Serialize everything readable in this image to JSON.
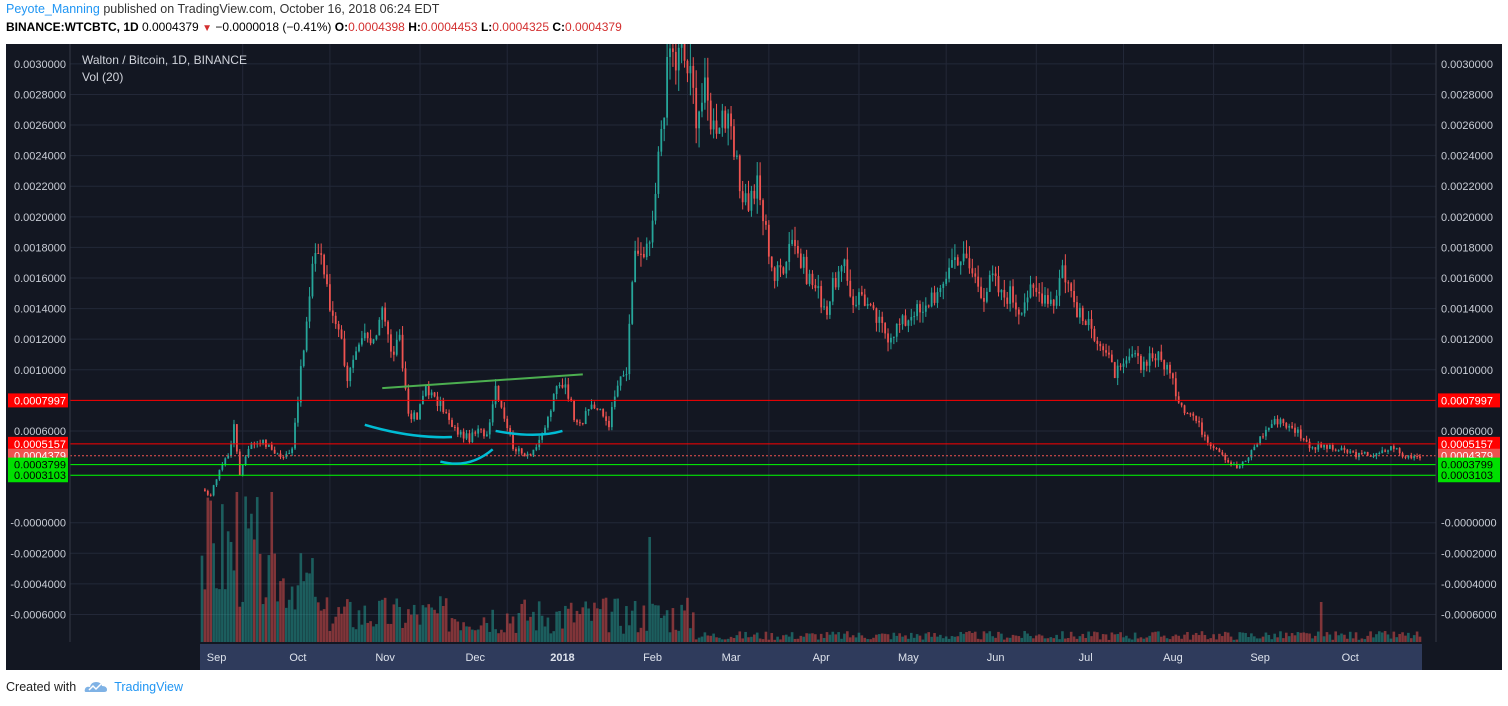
{
  "header": {
    "author": "Peyote_Manning",
    "published_text": "published on TradingView.com, October 16, 2018 06:24 EDT",
    "symbol": "BINANCE:WTCBTC, 1D",
    "last": "0.0004379",
    "change": "−0.0000018 (−0.41%)",
    "o_label": "O:",
    "o_value": "0.0004398",
    "h_label": "H:",
    "h_value": "0.0004453",
    "l_label": "L:",
    "l_value": "0.0004325",
    "c_label": "C:",
    "c_value": "0.0004379"
  },
  "footer": {
    "created_with": "Created with",
    "brand": "TradingView"
  },
  "colors": {
    "background": "#131722",
    "up": "#26a69a",
    "down": "#ef5350",
    "resistance_line": "#ff0000",
    "support_line": "#00ff00",
    "trendline": "#4caf50",
    "curve": "#00bcd4"
  },
  "chart_data": {
    "type": "candlestick",
    "title": "Walton / Bitcoin, 1D, BINANCE",
    "subtitle": "Vol (20)",
    "x_labels": [
      "Sep",
      "Oct",
      "Nov",
      "Dec",
      "2018",
      "Feb",
      "Mar",
      "Apr",
      "May",
      "Jun",
      "Jul",
      "Aug",
      "Sep",
      "Oct"
    ],
    "y_ticks": [
      "0.0030000",
      "0.0028000",
      "0.0026000",
      "0.0024000",
      "0.0022000",
      "0.0020000",
      "0.0018000",
      "0.0016000",
      "0.0014000",
      "0.0012000",
      "0.0010000",
      "0.0006000",
      "-0.0000000",
      "-0.0002000",
      "-0.0004000",
      "-0.0006000"
    ],
    "ylim": [
      -0.00078,
      0.00313
    ],
    "price_levels": [
      {
        "value": 0.0007997,
        "label": "0.0007997",
        "color": "#ff0000"
      },
      {
        "value": 0.0005157,
        "label": "0.0005157",
        "color": "#ff0000"
      },
      {
        "value": 0.0004379,
        "label": "0.0004379",
        "color": "#ef5350"
      },
      {
        "value": 0.0003799,
        "label": "0.0003799",
        "color": "#00ff00"
      },
      {
        "value": 0.0003103,
        "label": "0.0003103",
        "color": "#00ff00"
      }
    ],
    "close_path": [
      [
        0,
        0.00021
      ],
      [
        3,
        0.00018
      ],
      [
        6,
        0.00035
      ],
      [
        9,
        0.00045
      ],
      [
        11,
        0.00062
      ],
      [
        13,
        0.00032
      ],
      [
        16,
        0.0005
      ],
      [
        20,
        0.00054
      ],
      [
        24,
        0.00048
      ],
      [
        28,
        0.00042
      ],
      [
        31,
        0.0005
      ],
      [
        33,
        0.00082
      ],
      [
        36,
        0.0013
      ],
      [
        39,
        0.0018
      ],
      [
        41,
        0.00176
      ],
      [
        44,
        0.0014
      ],
      [
        47,
        0.0013
      ],
      [
        50,
        0.00095
      ],
      [
        53,
        0.00108
      ],
      [
        56,
        0.00122
      ],
      [
        59,
        0.00115
      ],
      [
        62,
        0.00145
      ],
      [
        65,
        0.0011
      ],
      [
        68,
        0.00118
      ],
      [
        71,
        0.00072
      ],
      [
        74,
        0.00068
      ],
      [
        77,
        0.0009
      ],
      [
        80,
        0.0008
      ],
      [
        83,
        0.00075
      ],
      [
        86,
        0.00062
      ],
      [
        89,
        0.00058
      ],
      [
        92,
        0.00055
      ],
      [
        95,
        0.0006
      ],
      [
        98,
        0.00058
      ],
      [
        101,
        0.0009
      ],
      [
        104,
        0.0007
      ],
      [
        107,
        0.0005
      ],
      [
        110,
        0.00045
      ],
      [
        113,
        0.00046
      ],
      [
        116,
        0.00052
      ],
      [
        119,
        0.00068
      ],
      [
        122,
        0.00088
      ],
      [
        125,
        0.00092
      ],
      [
        128,
        0.0007
      ],
      [
        131,
        0.00066
      ],
      [
        134,
        0.00078
      ],
      [
        137,
        0.00072
      ],
      [
        140,
        0.00065
      ],
      [
        143,
        0.0009
      ],
      [
        146,
        0.00098
      ],
      [
        149,
        0.0018
      ],
      [
        152,
        0.0017
      ],
      [
        155,
        0.0019
      ],
      [
        158,
        0.0026
      ],
      [
        161,
        0.0031
      ],
      [
        163,
        0.003
      ],
      [
        165,
        0.0031
      ],
      [
        168,
        0.0029
      ],
      [
        170,
        0.0027
      ],
      [
        173,
        0.0028
      ],
      [
        176,
        0.0026
      ],
      [
        179,
        0.0027
      ],
      [
        182,
        0.0025
      ],
      [
        185,
        0.0022
      ],
      [
        188,
        0.0021
      ],
      [
        191,
        0.0022
      ],
      [
        194,
        0.0019
      ],
      [
        197,
        0.0016
      ],
      [
        200,
        0.0017
      ],
      [
        203,
        0.0019
      ],
      [
        206,
        0.0017
      ],
      [
        209,
        0.0016
      ],
      [
        212,
        0.0015
      ],
      [
        215,
        0.0014
      ],
      [
        218,
        0.0016
      ],
      [
        221,
        0.00165
      ],
      [
        224,
        0.00145
      ],
      [
        227,
        0.0015
      ],
      [
        230,
        0.00138
      ],
      [
        233,
        0.0013
      ],
      [
        236,
        0.00123
      ],
      [
        239,
        0.00128
      ],
      [
        242,
        0.00132
      ],
      [
        245,
        0.0014
      ],
      [
        248,
        0.00135
      ],
      [
        251,
        0.0015
      ],
      [
        254,
        0.00148
      ],
      [
        257,
        0.0017
      ],
      [
        260,
        0.00175
      ],
      [
        263,
        0.0017
      ],
      [
        266,
        0.0016
      ],
      [
        269,
        0.0015
      ],
      [
        272,
        0.0016
      ],
      [
        275,
        0.00148
      ],
      [
        278,
        0.0015
      ],
      [
        281,
        0.0014
      ],
      [
        284,
        0.0015
      ],
      [
        287,
        0.0015
      ],
      [
        290,
        0.0015
      ],
      [
        293,
        0.00145
      ],
      [
        296,
        0.00168
      ],
      [
        299,
        0.0015
      ],
      [
        302,
        0.00135
      ],
      [
        305,
        0.00128
      ],
      [
        308,
        0.00122
      ],
      [
        311,
        0.0011
      ],
      [
        314,
        0.00098
      ],
      [
        317,
        0.001
      ],
      [
        320,
        0.0011
      ],
      [
        323,
        0.00102
      ],
      [
        326,
        0.0011
      ],
      [
        329,
        0.00108
      ],
      [
        332,
        0.00102
      ],
      [
        335,
        0.00085
      ],
      [
        338,
        0.00075
      ],
      [
        341,
        0.0007
      ],
      [
        344,
        0.0006
      ],
      [
        347,
        0.00052
      ],
      [
        350,
        0.00048
      ],
      [
        353,
        0.0004
      ],
      [
        356,
        0.00036
      ],
      [
        359,
        0.0004
      ],
      [
        362,
        0.0005
      ],
      [
        365,
        0.00058
      ],
      [
        368,
        0.00065
      ],
      [
        371,
        0.00068
      ],
      [
        374,
        0.00062
      ],
      [
        377,
        0.0006
      ],
      [
        380,
        0.00052
      ],
      [
        383,
        0.00049
      ],
      [
        386,
        0.0005
      ],
      [
        389,
        0.00048
      ],
      [
        392,
        0.00047
      ],
      [
        395,
        0.00046
      ],
      [
        398,
        0.00044
      ],
      [
        401,
        0.00045
      ],
      [
        404,
        0.00044
      ],
      [
        407,
        0.00047
      ],
      [
        410,
        0.0005
      ],
      [
        413,
        0.00043
      ],
      [
        416,
        0.00044
      ],
      [
        419,
        0.00044
      ]
    ],
    "annotations": {
      "trendline": [
        [
          62,
          0.00088
        ],
        [
          131,
          0.00097
        ]
      ],
      "curves": [
        [
          [
            56,
            0.00064
          ],
          [
            72,
            0.00055
          ],
          [
            86,
            0.00056
          ]
        ],
        [
          [
            82,
            0.0004
          ],
          [
            92,
            0.00035
          ],
          [
            100,
            0.00048
          ]
        ],
        [
          [
            101,
            0.0006
          ],
          [
            115,
            0.00055
          ],
          [
            124,
            0.0006
          ]
        ]
      ]
    }
  }
}
